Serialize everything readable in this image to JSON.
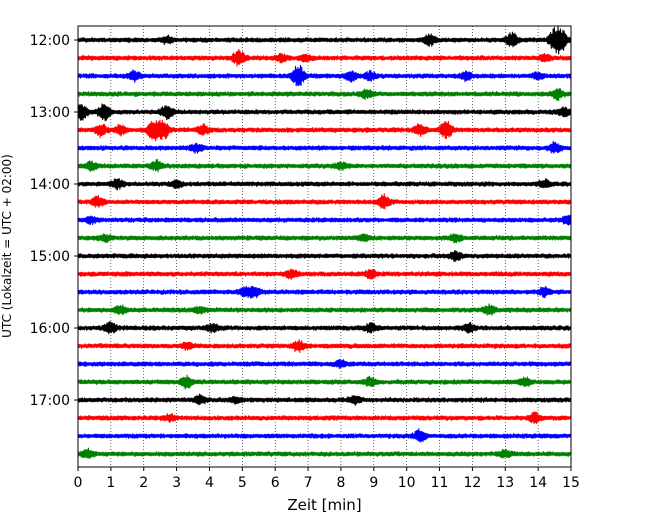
{
  "chart_data": {
    "type": "line",
    "title": "",
    "xlabel": "Zeit  [min]",
    "ylabel": "UTC (Lokalzeit = UTC + 02:00)",
    "xlim": [
      0,
      15
    ],
    "x_ticks": [
      0,
      1,
      2,
      3,
      4,
      5,
      6,
      7,
      8,
      9,
      10,
      11,
      12,
      13,
      14,
      15
    ],
    "x_tick_labels": [
      "0",
      "1",
      "2",
      "3",
      "4",
      "5",
      "6",
      "7",
      "8",
      "9",
      "10",
      "11",
      "12",
      "13",
      "14",
      "15"
    ],
    "y_tick_labels": [
      "12:00",
      "13:00",
      "14:00",
      "15:00",
      "16:00",
      "17:00"
    ],
    "trace_minutes": 15,
    "grid": "vertical dotted at each minute",
    "legend": "none",
    "trace_colors": [
      "#000000",
      "#ff0000",
      "#0000ff",
      "#008000"
    ],
    "traces": [
      {
        "start": "12:00",
        "color": "#000000",
        "events": [
          {
            "t": 2.7,
            "amp": 0.3
          },
          {
            "t": 10.7,
            "amp": 0.6
          },
          {
            "t": 13.2,
            "amp": 0.7
          },
          {
            "t": 14.5,
            "amp": 1.0
          },
          {
            "t": 14.7,
            "amp": 1.0
          }
        ]
      },
      {
        "start": "12:15",
        "color": "#ff0000",
        "events": [
          {
            "t": 4.9,
            "amp": 0.8
          },
          {
            "t": 6.2,
            "amp": 0.4
          },
          {
            "t": 6.9,
            "amp": 0.3
          },
          {
            "t": 14.2,
            "amp": 0.3
          }
        ]
      },
      {
        "start": "12:30",
        "color": "#0000ff",
        "events": [
          {
            "t": 1.7,
            "amp": 0.5
          },
          {
            "t": 6.7,
            "amp": 1.2
          },
          {
            "t": 8.3,
            "amp": 0.5
          },
          {
            "t": 8.9,
            "amp": 0.4
          },
          {
            "t": 11.8,
            "amp": 0.4
          },
          {
            "t": 14.0,
            "amp": 0.3
          }
        ]
      },
      {
        "start": "12:45",
        "color": "#008000",
        "events": [
          {
            "t": 8.8,
            "amp": 0.4
          },
          {
            "t": 14.6,
            "amp": 0.5
          }
        ]
      },
      {
        "start": "13:00",
        "color": "#000000",
        "events": [
          {
            "t": 0.1,
            "amp": 0.8
          },
          {
            "t": 0.8,
            "amp": 0.8
          },
          {
            "t": 2.7,
            "amp": 0.7
          },
          {
            "t": 14.8,
            "amp": 0.4
          }
        ]
      },
      {
        "start": "13:15",
        "color": "#ff0000",
        "events": [
          {
            "t": 0.7,
            "amp": 0.6
          },
          {
            "t": 1.3,
            "amp": 0.5
          },
          {
            "t": 2.3,
            "amp": 1.0
          },
          {
            "t": 2.6,
            "amp": 0.9
          },
          {
            "t": 3.8,
            "amp": 0.5
          },
          {
            "t": 10.4,
            "amp": 0.5
          },
          {
            "t": 11.2,
            "amp": 0.9
          }
        ]
      },
      {
        "start": "13:30",
        "color": "#0000ff",
        "events": [
          {
            "t": 3.6,
            "amp": 0.4
          },
          {
            "t": 14.5,
            "amp": 0.5
          }
        ]
      },
      {
        "start": "13:45",
        "color": "#008000",
        "events": [
          {
            "t": 0.4,
            "amp": 0.4
          },
          {
            "t": 2.4,
            "amp": 0.5
          },
          {
            "t": 8.0,
            "amp": 0.3
          }
        ]
      },
      {
        "start": "14:00",
        "color": "#000000",
        "events": [
          {
            "t": 1.2,
            "amp": 0.5
          },
          {
            "t": 3.0,
            "amp": 0.3
          },
          {
            "t": 14.2,
            "amp": 0.4
          }
        ]
      },
      {
        "start": "14:15",
        "color": "#ff0000",
        "events": [
          {
            "t": 0.6,
            "amp": 0.5
          },
          {
            "t": 9.3,
            "amp": 0.7
          }
        ]
      },
      {
        "start": "14:30",
        "color": "#0000ff",
        "events": [
          {
            "t": 0.4,
            "amp": 0.3
          },
          {
            "t": 14.9,
            "amp": 0.4
          }
        ]
      },
      {
        "start": "14:45",
        "color": "#008000",
        "events": [
          {
            "t": 0.8,
            "amp": 0.3
          },
          {
            "t": 8.7,
            "amp": 0.3
          },
          {
            "t": 11.5,
            "amp": 0.4
          }
        ]
      },
      {
        "start": "15:00",
        "color": "#000000",
        "events": [
          {
            "t": 11.5,
            "amp": 0.4
          }
        ]
      },
      {
        "start": "15:15",
        "color": "#ff0000",
        "events": [
          {
            "t": 6.5,
            "amp": 0.4
          },
          {
            "t": 8.9,
            "amp": 0.4
          }
        ]
      },
      {
        "start": "15:30",
        "color": "#0000ff",
        "events": [
          {
            "t": 5.1,
            "amp": 0.5
          },
          {
            "t": 5.4,
            "amp": 0.5
          },
          {
            "t": 14.2,
            "amp": 0.4
          }
        ]
      },
      {
        "start": "15:45",
        "color": "#008000",
        "events": [
          {
            "t": 1.3,
            "amp": 0.4
          },
          {
            "t": 3.7,
            "amp": 0.3
          },
          {
            "t": 12.5,
            "amp": 0.5
          }
        ]
      },
      {
        "start": "16:00",
        "color": "#000000",
        "events": [
          {
            "t": 1.0,
            "amp": 0.5
          },
          {
            "t": 4.1,
            "amp": 0.4
          },
          {
            "t": 8.9,
            "amp": 0.4
          },
          {
            "t": 11.9,
            "amp": 0.4
          }
        ]
      },
      {
        "start": "16:15",
        "color": "#ff0000",
        "events": [
          {
            "t": 3.3,
            "amp": 0.3
          },
          {
            "t": 6.7,
            "amp": 0.5
          }
        ]
      },
      {
        "start": "16:30",
        "color": "#0000ff",
        "events": [
          {
            "t": 8.0,
            "amp": 0.3
          }
        ]
      },
      {
        "start": "16:45",
        "color": "#008000",
        "events": [
          {
            "t": 3.3,
            "amp": 0.6
          },
          {
            "t": 8.9,
            "amp": 0.4
          },
          {
            "t": 13.6,
            "amp": 0.4
          }
        ]
      },
      {
        "start": "17:00",
        "color": "#000000",
        "events": [
          {
            "t": 3.7,
            "amp": 0.4
          },
          {
            "t": 4.8,
            "amp": 0.3
          },
          {
            "t": 8.4,
            "amp": 0.4
          }
        ]
      },
      {
        "start": "17:15",
        "color": "#ff0000",
        "events": [
          {
            "t": 2.8,
            "amp": 0.3
          },
          {
            "t": 13.9,
            "amp": 0.5
          }
        ]
      },
      {
        "start": "17:30",
        "color": "#0000ff",
        "events": [
          {
            "t": 10.4,
            "amp": 0.6
          }
        ]
      },
      {
        "start": "17:45",
        "color": "#008000",
        "events": [
          {
            "t": 0.3,
            "amp": 0.4
          },
          {
            "t": 13.0,
            "amp": 0.3
          }
        ]
      }
    ]
  }
}
